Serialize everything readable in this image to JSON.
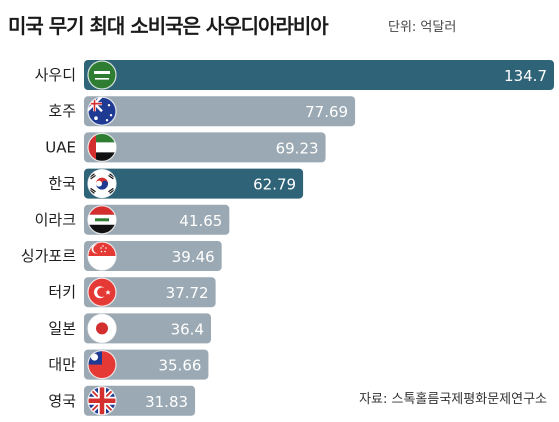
{
  "title": "미국 무기 최대 소비국은 사우디아라비아",
  "unit": "단위: 억달러",
  "source": "자료: 스톡홀름국제평화문제연구소",
  "colors": {
    "highlight": "#2f6377",
    "normal": "#9aa9b3"
  },
  "chart_data": {
    "type": "bar",
    "orientation": "horizontal",
    "title": "미국 무기 최대 소비국은 사우디아라비아",
    "unit": "단위: 억달러",
    "categories": [
      "사우디",
      "호주",
      "UAE",
      "한국",
      "이라크",
      "싱가포르",
      "터키",
      "일본",
      "대만",
      "영국"
    ],
    "values": [
      134.7,
      77.69,
      69.23,
      62.79,
      41.65,
      39.46,
      37.72,
      36.4,
      35.66,
      31.83
    ],
    "value_labels": [
      "134.7",
      "77.69",
      "69.23",
      "62.79",
      "41.65",
      "39.46",
      "37.72",
      "36.4",
      "35.66",
      "31.83"
    ],
    "highlighted": [
      "사우디",
      "한국"
    ],
    "flag_icons": [
      "saudi-flag-icon",
      "australia-flag-icon",
      "uae-flag-icon",
      "korea-flag-icon",
      "iraq-flag-icon",
      "singapore-flag-icon",
      "turkey-flag-icon",
      "japan-flag-icon",
      "taiwan-flag-icon",
      "uk-flag-icon"
    ],
    "xlim": [
      0,
      134.7
    ],
    "grid": false,
    "legend": "none"
  }
}
